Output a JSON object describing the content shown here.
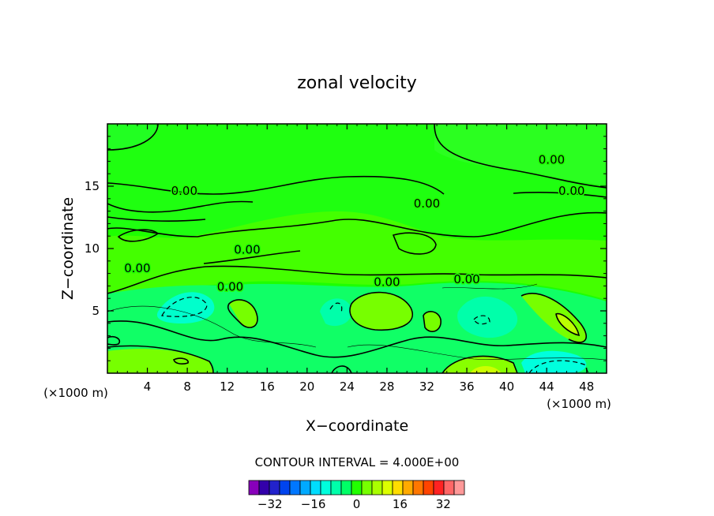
{
  "chart_data": {
    "type": "contour",
    "title": "zonal velocity",
    "xlabel": "X−coordinate",
    "ylabel": "Z−coordinate",
    "x_unit_left": "(×1000 m)",
    "x_unit_right": "(×1000 m)",
    "xlim": [
      0,
      50
    ],
    "ylim": [
      0,
      20
    ],
    "x_ticks": [
      4,
      8,
      12,
      16,
      20,
      24,
      28,
      32,
      36,
      40,
      44,
      48
    ],
    "y_ticks": [
      5,
      10,
      15
    ],
    "contour_interval_text": "CONTOUR INTERVAL = 4.000E+00",
    "contour_labels": [
      {
        "text": "0.00",
        "x": 7.7,
        "y": 14.3
      },
      {
        "text": "0.00",
        "x": 14.0,
        "y": 9.6
      },
      {
        "text": "0.00",
        "x": 3.0,
        "y": 8.1
      },
      {
        "text": "0.00",
        "x": 12.3,
        "y": 6.6
      },
      {
        "text": "0.00",
        "x": 28.0,
        "y": 7.0
      },
      {
        "text": "0.00",
        "x": 36.0,
        "y": 7.2
      },
      {
        "text": "0.00",
        "x": 44.5,
        "y": 16.8
      },
      {
        "text": "0.00",
        "x": 46.5,
        "y": 14.3
      },
      {
        "text": "0.00",
        "x": 32.0,
        "y": 13.3
      }
    ],
    "colorbar": {
      "levels": [
        -36,
        -32,
        -28,
        -24,
        -20,
        -16,
        -12,
        -8,
        -4,
        0,
        4,
        8,
        12,
        16,
        20,
        24,
        28,
        32,
        36
      ],
      "colors": [
        "#8800bb",
        "#3300aa",
        "#2222cc",
        "#0044ee",
        "#0077ff",
        "#00aaff",
        "#00ddff",
        "#00ffdd",
        "#00ffaa",
        "#00ff66",
        "#22ff00",
        "#77ff00",
        "#aaff00",
        "#ddff00",
        "#ffdd00",
        "#ffaa00",
        "#ff7700",
        "#ff4400",
        "#ff2222",
        "#ff6666",
        "#ff9999"
      ],
      "tick_labels": [
        "−32",
        "−16",
        "0",
        "16",
        "32"
      ],
      "tick_values": [
        -32,
        -16,
        0,
        16,
        32
      ]
    },
    "grid": false,
    "legend": "colorbar-bottom"
  }
}
